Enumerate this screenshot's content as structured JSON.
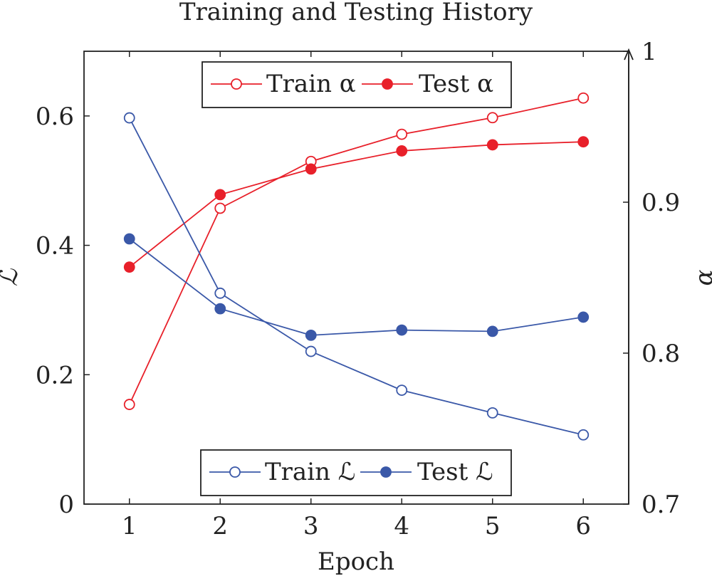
{
  "chart_data": {
    "type": "line",
    "title": "Training and Testing History",
    "xlabel": "Epoch",
    "ylabel_left": "ℒ",
    "ylabel_right": "α",
    "x": [
      1,
      2,
      3,
      4,
      5,
      6
    ],
    "x_ticks": [
      "1",
      "2",
      "3",
      "4",
      "5",
      "6"
    ],
    "xlim": [
      0.5,
      6.5
    ],
    "ylim_left": [
      0,
      0.7
    ],
    "yticks_left": [
      0,
      0.2,
      0.4,
      0.6
    ],
    "ytick_labels_left": [
      "0",
      "0.2",
      "0.4",
      "0.6"
    ],
    "ylim_right": [
      0.7,
      1.0
    ],
    "yticks_right": [
      0.7,
      0.8,
      0.9,
      1.0
    ],
    "ytick_labels_right": [
      "0.7",
      "0.8",
      "0.9",
      "1"
    ],
    "grid": false,
    "series": [
      {
        "name": "Train α",
        "axis": "right",
        "color": "#e8202a",
        "marker": "open-circle",
        "values": [
          0.766,
          0.896,
          0.927,
          0.945,
          0.956,
          0.969
        ]
      },
      {
        "name": "Test α",
        "axis": "right",
        "color": "#e8202a",
        "marker": "filled-circle",
        "values": [
          0.857,
          0.905,
          0.922,
          0.934,
          0.938,
          0.94
        ]
      },
      {
        "name": "Train ℒ",
        "axis": "left",
        "color": "#3a58a8",
        "marker": "open-circle",
        "values": [
          0.597,
          0.326,
          0.236,
          0.176,
          0.141,
          0.107
        ]
      },
      {
        "name": "Test ℒ",
        "axis": "left",
        "color": "#3a58a8",
        "marker": "filled-circle",
        "values": [
          0.41,
          0.302,
          0.261,
          0.269,
          0.267,
          0.289
        ]
      }
    ],
    "legends": [
      {
        "placement": "top-center",
        "entries": [
          "Train α",
          "Test α"
        ]
      },
      {
        "placement": "bottom-center",
        "entries": [
          "Train ℒ",
          "Test ℒ"
        ]
      }
    ]
  }
}
